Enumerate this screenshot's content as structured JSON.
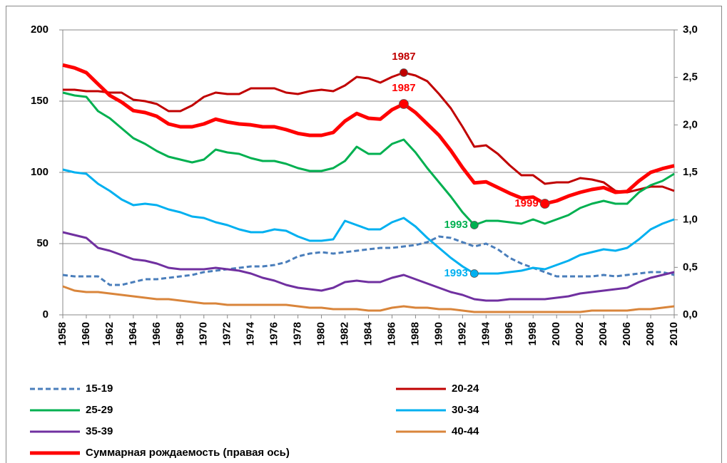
{
  "chart_data": {
    "type": "line",
    "x": [
      1958,
      1959,
      1960,
      1961,
      1962,
      1963,
      1964,
      1965,
      1966,
      1967,
      1968,
      1969,
      1970,
      1971,
      1972,
      1973,
      1974,
      1975,
      1976,
      1977,
      1978,
      1979,
      1980,
      1981,
      1982,
      1983,
      1984,
      1985,
      1986,
      1987,
      1988,
      1989,
      1990,
      1991,
      1992,
      1993,
      1994,
      1995,
      1996,
      1997,
      1998,
      1999,
      2000,
      2001,
      2002,
      2003,
      2004,
      2005,
      2006,
      2007,
      2008,
      2009,
      2010
    ],
    "xlim": [
      1958,
      2010
    ],
    "xticks": [
      1958,
      1960,
      1962,
      1964,
      1966,
      1968,
      1970,
      1972,
      1974,
      1976,
      1978,
      1980,
      1982,
      1984,
      1986,
      1988,
      1990,
      1992,
      1994,
      1996,
      1998,
      2000,
      2002,
      2004,
      2006,
      2008,
      2010
    ],
    "ylim": [
      0,
      200
    ],
    "yticks": [
      0,
      50,
      100,
      150,
      200
    ],
    "y2lim": [
      0,
      3
    ],
    "y2ticks": [
      {
        "value": 0,
        "label": "0,0"
      },
      {
        "value": 0.5,
        "label": "0,5"
      },
      {
        "value": 1,
        "label": "1,0"
      },
      {
        "value": 1.5,
        "label": "1,5"
      },
      {
        "value": 2,
        "label": "2,0"
      },
      {
        "value": 2.5,
        "label": "2,5"
      },
      {
        "value": 3,
        "label": "3,0"
      }
    ],
    "grid": true,
    "legend": "bottom",
    "series": [
      {
        "name": "15-19",
        "color": "#4a7ebb",
        "dashed": true,
        "values": [
          28,
          27,
          27,
          27,
          21,
          21,
          23,
          25,
          25,
          26,
          27,
          28,
          30,
          31,
          32,
          33,
          34,
          34,
          35,
          37,
          41,
          43,
          44,
          43,
          44,
          45,
          46,
          47,
          47,
          48,
          49,
          51,
          55,
          54,
          51,
          48,
          50,
          46,
          40,
          36,
          33,
          30,
          27,
          27,
          27,
          27,
          28,
          27,
          28,
          29,
          30,
          30,
          28
        ]
      },
      {
        "name": "20-24",
        "color": "#c00000",
        "values": [
          158,
          158,
          157,
          157,
          156,
          156,
          151,
          150,
          148,
          143,
          143,
          147,
          153,
          156,
          155,
          155,
          159,
          159,
          159,
          156,
          155,
          157,
          158,
          157,
          161,
          167,
          166,
          163,
          167,
          170,
          168,
          164,
          155,
          145,
          132,
          118,
          119,
          113,
          105,
          98,
          98,
          92,
          93,
          93,
          96,
          95,
          93,
          87,
          86,
          88,
          90,
          90,
          87
        ],
        "annotations": [
          1987
        ]
      },
      {
        "name": "25-29",
        "color": "#00b050",
        "values": [
          156,
          154,
          153,
          143,
          138,
          131,
          124,
          120,
          115,
          111,
          109,
          107,
          109,
          116,
          114,
          113,
          110,
          108,
          108,
          106,
          103,
          101,
          101,
          103,
          108,
          118,
          113,
          113,
          120,
          123,
          114,
          103,
          93,
          83,
          72,
          63,
          66,
          66,
          65,
          64,
          67,
          64,
          67,
          70,
          75,
          78,
          80,
          78,
          78,
          86,
          91,
          94,
          99
        ],
        "annotations": [
          1993
        ]
      },
      {
        "name": "30-34",
        "color": "#00b0f0",
        "values": [
          102,
          100,
          99,
          92,
          87,
          81,
          77,
          78,
          77,
          74,
          72,
          69,
          68,
          65,
          63,
          60,
          58,
          58,
          60,
          59,
          55,
          52,
          52,
          53,
          66,
          63,
          60,
          60,
          65,
          68,
          62,
          54,
          47,
          40,
          34,
          29,
          29,
          29,
          30,
          31,
          33,
          32,
          35,
          38,
          42,
          44,
          46,
          45,
          47,
          53,
          60,
          64,
          67
        ],
        "annotations": [
          1993
        ]
      },
      {
        "name": "35-39",
        "color": "#7030a0",
        "values": [
          58,
          56,
          54,
          47,
          45,
          42,
          39,
          38,
          36,
          33,
          32,
          32,
          32,
          33,
          32,
          31,
          29,
          26,
          24,
          21,
          19,
          18,
          17,
          19,
          23,
          24,
          23,
          23,
          26,
          28,
          25,
          22,
          19,
          16,
          14,
          11,
          10,
          10,
          11,
          11,
          11,
          11,
          12,
          13,
          15,
          16,
          17,
          18,
          19,
          23,
          26,
          28,
          30
        ]
      },
      {
        "name": "40-44",
        "color": "#d9853b",
        "values": [
          20,
          17,
          16,
          16,
          15,
          14,
          13,
          12,
          11,
          11,
          10,
          9,
          8,
          8,
          7,
          7,
          7,
          7,
          7,
          7,
          6,
          5,
          5,
          4,
          4,
          4,
          3,
          3,
          5,
          6,
          5,
          5,
          4,
          4,
          3,
          2,
          2,
          2,
          2,
          2,
          2,
          2,
          2,
          2,
          2,
          3,
          3,
          3,
          3,
          4,
          4,
          5,
          6
        ]
      },
      {
        "name": "Суммарная рождаемость (правая ось)",
        "color": "#ff0000",
        "axis": "y2",
        "thick": true,
        "values": [
          2.63,
          2.6,
          2.55,
          2.43,
          2.31,
          2.24,
          2.15,
          2.13,
          2.09,
          2.01,
          1.98,
          1.98,
          2.01,
          2.06,
          2.03,
          2.01,
          2.0,
          1.98,
          1.98,
          1.95,
          1.91,
          1.89,
          1.89,
          1.92,
          2.04,
          2.12,
          2.07,
          2.06,
          2.16,
          2.22,
          2.13,
          2.01,
          1.89,
          1.73,
          1.55,
          1.39,
          1.4,
          1.34,
          1.28,
          1.23,
          1.24,
          1.17,
          1.2,
          1.25,
          1.29,
          1.32,
          1.34,
          1.29,
          1.3,
          1.41,
          1.5,
          1.54,
          1.57
        ],
        "annotations": [
          1987,
          1999
        ]
      }
    ]
  }
}
